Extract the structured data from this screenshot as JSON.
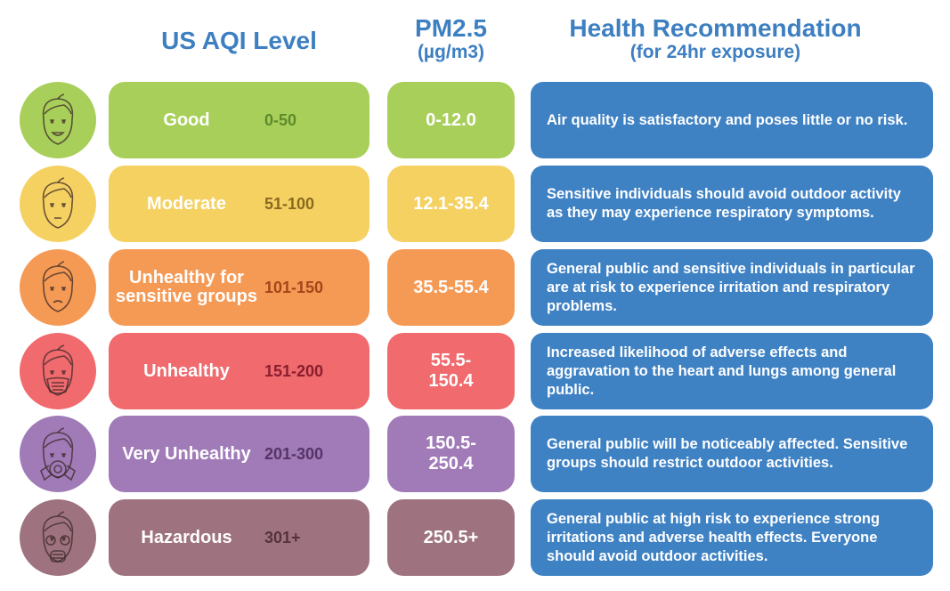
{
  "headers": {
    "aqi": "US AQI Level",
    "pm_line1": "PM2.5",
    "pm_line2": "(µg/m3)",
    "health_line1": "Health Recommendation",
    "health_line2": "(for 24hr exposure)"
  },
  "colors": {
    "header": "#3d7fc1",
    "health_box": "#3f82c4"
  },
  "rows": [
    {
      "icon": "smiling-face-icon",
      "level": "Good",
      "range": "0-50",
      "pm": "0-12.0",
      "health": "Air quality is satisfactory and poses little or no risk.",
      "color": "#a8cf5a",
      "range_color": "#5e8a2a"
    },
    {
      "icon": "neutral-face-icon",
      "level": "Moderate",
      "range": "51-100",
      "pm": "12.1-35.4",
      "health": "Sensitive individuals should avoid outdoor activity as they may experience respiratory symptoms.",
      "color": "#f5d162",
      "range_color": "#8a6a1e"
    },
    {
      "icon": "sad-face-icon",
      "level": "Unhealthy for sensitive groups",
      "range": "101-150",
      "pm": "35.5-55.4",
      "health": "General public and sensitive individuals in particular are at risk to experience irritation and respiratory problems.",
      "color": "#f59a55",
      "range_color": "#a3461a"
    },
    {
      "icon": "face-mask-icon",
      "level": "Unhealthy",
      "range": "151-200",
      "pm": "55.5-150.4",
      "health": "Increased likelihood of adverse effects and aggravation to the heart and lungs among general public.",
      "color": "#f06a6e",
      "range_color": "#8a1e2e"
    },
    {
      "icon": "respirator-face-icon",
      "level": "Very Unhealthy",
      "range": "201-300",
      "pm": "150.5-250.4",
      "health": "General public will be noticeably affected. Sensitive groups should restrict outdoor activities.",
      "color": "#a07bb8",
      "range_color": "#553468"
    },
    {
      "icon": "gas-mask-icon",
      "level": "Hazardous",
      "range": "301+",
      "pm": "250.5+",
      "health": "General public at high risk to experience strong irritations and adverse health effects. Everyone should avoid outdoor activities.",
      "color": "#9e737f",
      "range_color": "#55323e"
    }
  ]
}
